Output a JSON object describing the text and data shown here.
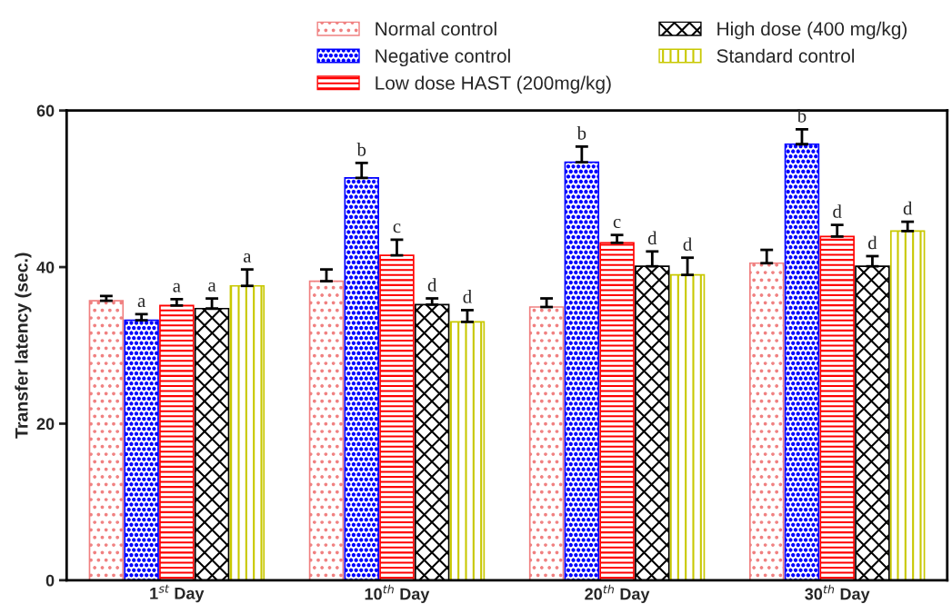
{
  "chart_data": {
    "type": "bar",
    "ylabel": "Transfer latency (sec.)",
    "categories": [
      "1$^{st}$ Day",
      "10$^{th}$ Day",
      "20$^{th}$ Day",
      "30$^{th}$ Day"
    ],
    "series": [
      {
        "name": "Normal control",
        "color": "#f08080",
        "values": [
          35.7,
          38.2,
          34.9,
          40.5
        ],
        "errors": [
          [
            35.7,
            36.3
          ],
          [
            38.2,
            39.7
          ],
          [
            34.9,
            36.0
          ],
          [
            40.5,
            42.2
          ]
        ],
        "value_labels": [
          null,
          null,
          null,
          null
        ]
      },
      {
        "name": "Negative control",
        "color": "#0000ff",
        "values": [
          33.2,
          51.4,
          53.4,
          55.7
        ],
        "errors": [
          [
            33.2,
            34.0
          ],
          [
            51.4,
            53.3
          ],
          [
            53.4,
            55.4
          ],
          [
            55.7,
            57.6
          ]
        ],
        "value_labels": [
          "a",
          "b",
          "b",
          "b"
        ]
      },
      {
        "name": "Low dose HAST (200mg/kg)",
        "color": "#ff0000",
        "values": [
          35.1,
          41.5,
          43.1,
          43.9
        ],
        "errors": [
          [
            35.1,
            35.9
          ],
          [
            41.5,
            43.5
          ],
          [
            43.1,
            44.1
          ],
          [
            43.9,
            45.4
          ]
        ],
        "value_labels": [
          "a",
          "c",
          "c",
          "d"
        ]
      },
      {
        "name": "High dose (400 mg/kg)",
        "color": "#000000",
        "values": [
          34.7,
          35.2,
          40.1,
          40.1
        ],
        "errors": [
          [
            34.7,
            36.0
          ],
          [
            35.2,
            36.0
          ],
          [
            40.1,
            42.0
          ],
          [
            40.1,
            41.4
          ]
        ],
        "value_labels": [
          "a",
          "d",
          "d",
          "d"
        ]
      },
      {
        "name": "Standard control",
        "color": "#c8c800",
        "values": [
          37.6,
          33.0,
          39.0,
          44.6
        ],
        "errors": [
          [
            37.6,
            39.7
          ],
          [
            33.0,
            34.5
          ],
          [
            39.0,
            41.2
          ],
          [
            44.6,
            45.8
          ]
        ],
        "value_labels": [
          "a",
          "d",
          "d",
          "d"
        ]
      }
    ],
    "ylim": [
      0,
      60
    ],
    "yticks": [
      0,
      20,
      40,
      60
    ],
    "grid": false,
    "legend": "top"
  }
}
